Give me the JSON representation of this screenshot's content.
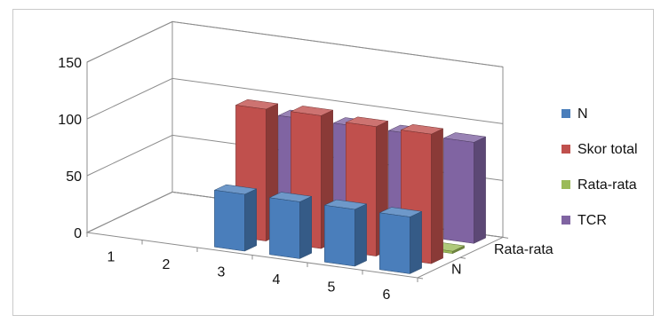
{
  "chart_data": {
    "type": "bar",
    "subtype": "3d-column",
    "title": "",
    "xlabel": "",
    "ylabel": "",
    "ylim": [
      0,
      150
    ],
    "yticks": [
      0,
      50,
      100,
      150
    ],
    "categories": [
      "1",
      "2",
      "3",
      "4",
      "5",
      "6"
    ],
    "depth_categories": [
      "N",
      "Rata-rata"
    ],
    "grid": true,
    "legend_position": "right",
    "series": [
      {
        "name": "N",
        "color": "#4a7ebb",
        "values": [
          null,
          null,
          50,
          50,
          50,
          50
        ]
      },
      {
        "name": "Skor total",
        "color": "#c0504d",
        "values": [
          null,
          null,
          116,
          117,
          114,
          114
        ]
      },
      {
        "name": "Rata-rata",
        "color": "#9bbb59",
        "values": [
          null,
          null,
          2,
          2,
          2,
          2
        ]
      },
      {
        "name": "TCR",
        "color": "#8064a2",
        "values": [
          null,
          null,
          89,
          89,
          89,
          89
        ]
      }
    ]
  }
}
